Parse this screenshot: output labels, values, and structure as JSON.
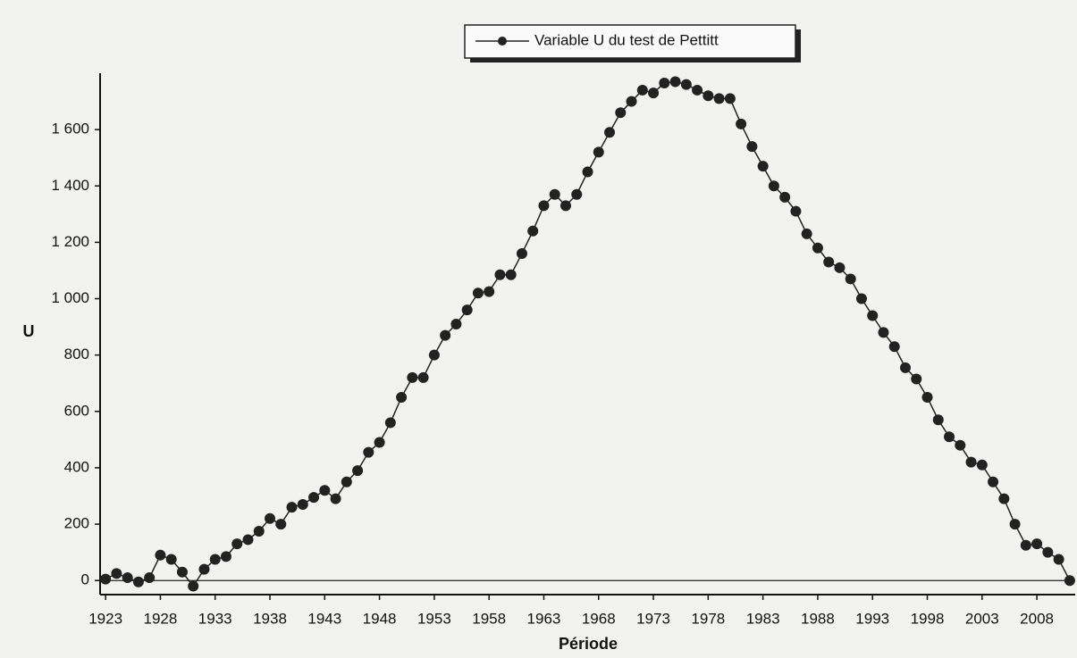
{
  "chart_data": {
    "type": "line",
    "xlabel": "Période",
    "ylabel": "U",
    "x": [
      1923,
      1924,
      1925,
      1926,
      1927,
      1928,
      1929,
      1930,
      1931,
      1932,
      1933,
      1934,
      1935,
      1936,
      1937,
      1938,
      1939,
      1940,
      1941,
      1942,
      1943,
      1944,
      1945,
      1946,
      1947,
      1948,
      1949,
      1950,
      1951,
      1952,
      1953,
      1954,
      1955,
      1956,
      1957,
      1958,
      1959,
      1960,
      1961,
      1962,
      1963,
      1964,
      1965,
      1966,
      1967,
      1968,
      1969,
      1970,
      1971,
      1972,
      1973,
      1974,
      1975,
      1976,
      1977,
      1978,
      1979,
      1980,
      1981,
      1982,
      1983,
      1984,
      1985,
      1986,
      1987,
      1988,
      1989,
      1990,
      1991,
      1992,
      1993,
      1994,
      1995,
      1996,
      1997,
      1998,
      1999,
      2000,
      2001,
      2002,
      2003,
      2004,
      2005,
      2006,
      2007,
      2008,
      2009,
      2010,
      2011
    ],
    "series": [
      {
        "name": "Variable U du test de Pettitt",
        "color": "#222222",
        "values": [
          5,
          25,
          10,
          -5,
          10,
          90,
          75,
          30,
          -20,
          40,
          75,
          85,
          130,
          145,
          175,
          220,
          200,
          260,
          270,
          295,
          320,
          290,
          350,
          390,
          455,
          490,
          560,
          650,
          720,
          720,
          800,
          870,
          910,
          960,
          1020,
          1025,
          1085,
          1085,
          1160,
          1240,
          1330,
          1370,
          1330,
          1370,
          1450,
          1520,
          1590,
          1660,
          1700,
          1740,
          1730,
          1765,
          1770,
          1760,
          1740,
          1720,
          1710,
          1710,
          1620,
          1540,
          1470,
          1400,
          1360,
          1310,
          1230,
          1180,
          1130,
          1110,
          1070,
          1000,
          940,
          880,
          830,
          755,
          715,
          650,
          570,
          510,
          480,
          420,
          410,
          350,
          290,
          200,
          125,
          130,
          100,
          75,
          0
        ]
      }
    ],
    "xlim": [
      1922.5,
      2011.5
    ],
    "xticks": [
      1923,
      1928,
      1933,
      1938,
      1943,
      1948,
      1953,
      1958,
      1963,
      1968,
      1973,
      1978,
      1983,
      1988,
      1993,
      1998,
      2003,
      2008
    ],
    "ylim": [
      -50,
      1800
    ],
    "yticks": [
      0,
      200,
      400,
      600,
      800,
      {
        "value": 1000,
        "label": "1 000"
      },
      {
        "value": 1200,
        "label": "1 200"
      },
      {
        "value": 1400,
        "label": "1 400"
      },
      {
        "value": 1600,
        "label": "1 600"
      }
    ],
    "legend": "top"
  }
}
